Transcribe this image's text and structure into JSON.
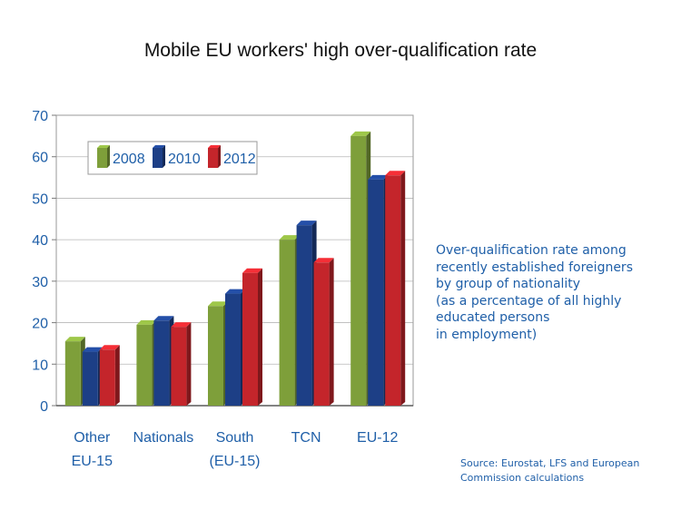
{
  "chart_data": {
    "type": "bar",
    "title": "Mobile EU workers' high over-qualification rate",
    "categories": [
      [
        "Other",
        "EU-15"
      ],
      [
        "Nationals"
      ],
      [
        "South",
        "(EU-15)"
      ],
      [
        "TCN"
      ],
      [
        "EU-12"
      ]
    ],
    "series": [
      {
        "name": "2008",
        "values": [
          15.5,
          19.5,
          24,
          40,
          65
        ],
        "color": "#7e9f3a"
      },
      {
        "name": "2010",
        "values": [
          13,
          20.5,
          27,
          43.5,
          54.5
        ],
        "color": "#1d3f86"
      },
      {
        "name": "2012",
        "values": [
          13.5,
          19,
          32,
          34.5,
          55.5
        ],
        "color": "#c4252b"
      }
    ],
    "ylim": [
      0,
      70
    ],
    "yticks": [
      0,
      10,
      20,
      30,
      40,
      50,
      60,
      70
    ],
    "grid": true,
    "legend": "top-left"
  },
  "note": [
    "Over-qualification rate among",
    "recently established foreigners",
    "by group of nationality",
    "(as a percentage of all highly",
    "educated persons",
    "in employment)"
  ],
  "source": [
    "Source: Eurostat, LFS and European",
    "Commission calculations"
  ]
}
